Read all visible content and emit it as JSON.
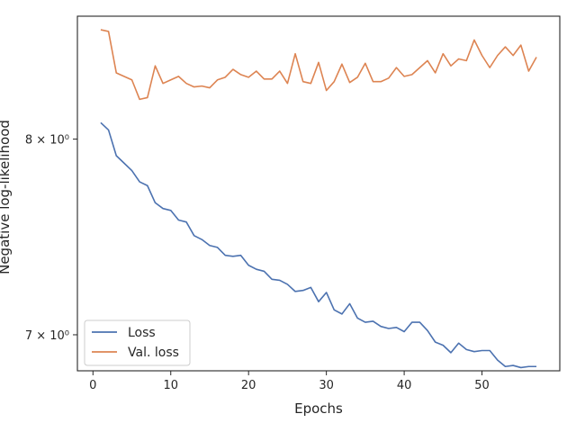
{
  "chart_data": {
    "type": "line",
    "xlabel": "Epochs",
    "ylabel": "Negative log-likelihood",
    "yscale": "log",
    "xlim": [
      -2.0,
      60.0
    ],
    "ylim": [
      6.83,
      8.7
    ],
    "x_ticks": [
      0,
      10,
      20,
      30,
      40,
      50
    ],
    "y_ticks": [
      {
        "value": 7.0,
        "label": "7 × 10⁰"
      },
      {
        "value": 8.0,
        "label": "8 × 10⁰"
      }
    ],
    "grid": false,
    "legend": "lower-left",
    "x": [
      1,
      2,
      3,
      4,
      5,
      6,
      7,
      8,
      9,
      10,
      11,
      12,
      13,
      14,
      15,
      16,
      17,
      18,
      19,
      20,
      21,
      22,
      23,
      24,
      25,
      26,
      27,
      28,
      29,
      30,
      31,
      32,
      33,
      34,
      35,
      36,
      37,
      38,
      39,
      40,
      41,
      42,
      43,
      44,
      45,
      46,
      47,
      48,
      49,
      50,
      51,
      52,
      53,
      54,
      55,
      56,
      57
    ],
    "series": [
      {
        "name": "Loss",
        "color": "#4c72b0",
        "values": [
          8.09,
          8.05,
          7.91,
          7.87,
          7.83,
          7.77,
          7.75,
          7.66,
          7.63,
          7.62,
          7.57,
          7.56,
          7.49,
          7.47,
          7.44,
          7.43,
          7.39,
          7.385,
          7.39,
          7.34,
          7.32,
          7.31,
          7.27,
          7.265,
          7.245,
          7.21,
          7.215,
          7.23,
          7.16,
          7.205,
          7.12,
          7.1,
          7.15,
          7.08,
          7.06,
          7.065,
          7.04,
          7.03,
          7.035,
          7.015,
          7.06,
          7.06,
          7.02,
          6.965,
          6.95,
          6.915,
          6.96,
          6.93,
          6.92,
          6.925,
          6.925,
          6.88,
          6.85,
          6.855,
          6.845,
          6.85,
          6.85
        ]
      },
      {
        "name": "Val. loss",
        "color": "#dd8452",
        "values": [
          8.62,
          8.61,
          8.37,
          8.35,
          8.33,
          8.22,
          8.23,
          8.41,
          8.31,
          8.33,
          8.35,
          8.31,
          8.29,
          8.295,
          8.285,
          8.33,
          8.345,
          8.39,
          8.36,
          8.345,
          8.38,
          8.335,
          8.335,
          8.38,
          8.31,
          8.48,
          8.32,
          8.31,
          8.43,
          8.27,
          8.32,
          8.42,
          8.315,
          8.345,
          8.425,
          8.32,
          8.32,
          8.34,
          8.4,
          8.35,
          8.36,
          8.4,
          8.44,
          8.37,
          8.48,
          8.41,
          8.45,
          8.44,
          8.56,
          8.47,
          8.4,
          8.47,
          8.52,
          8.47,
          8.53,
          8.38,
          8.46
        ]
      }
    ]
  }
}
